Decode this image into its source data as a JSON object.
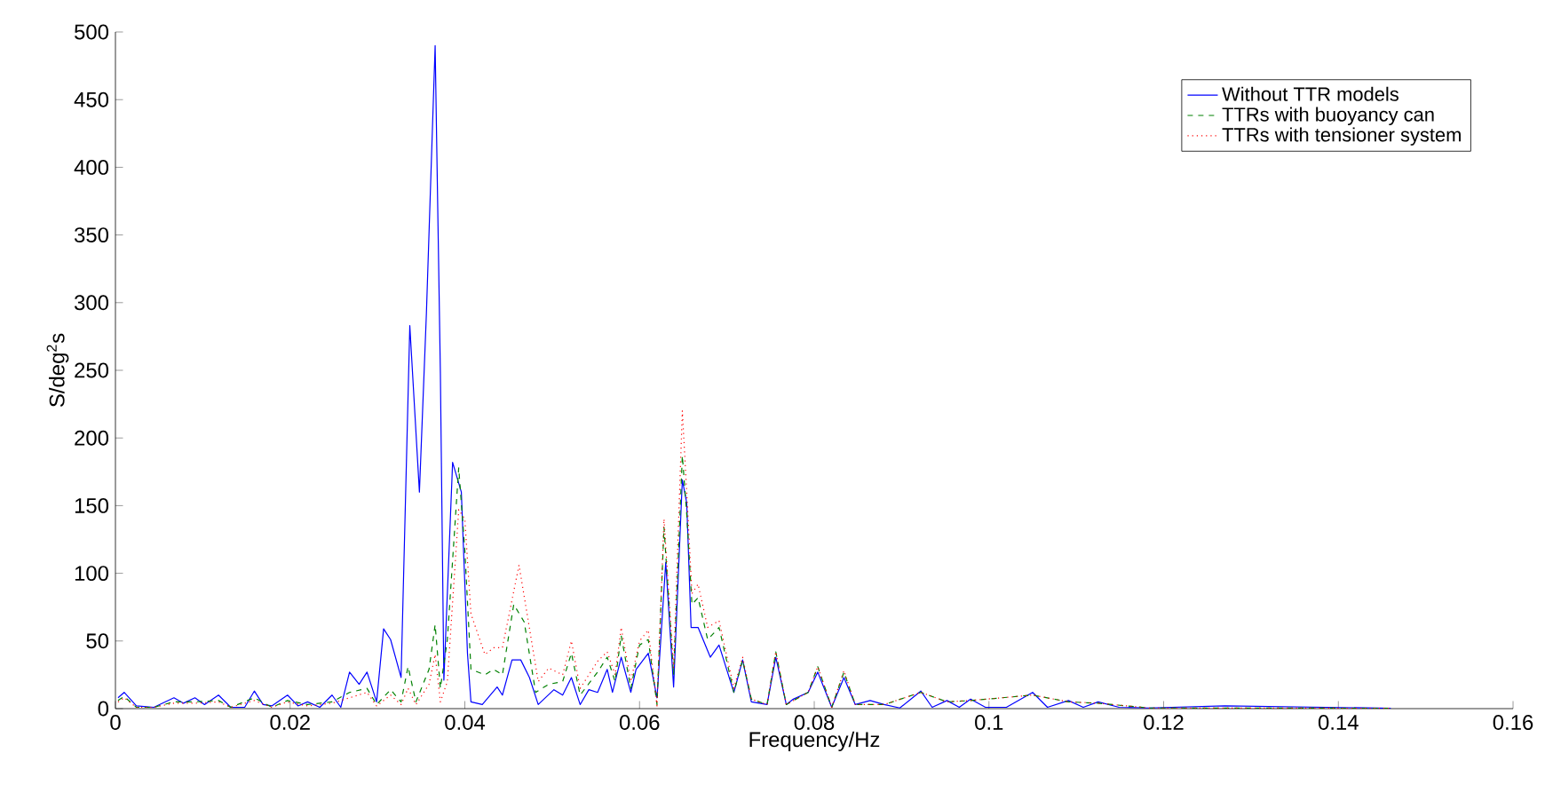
{
  "chart_data": {
    "type": "line",
    "xlabel": "Frequency/Hz",
    "ylabel": "S/deg$^{2}$s",
    "xlim": [
      0,
      0.16
    ],
    "ylim": [
      0,
      500
    ],
    "xticks": [
      0,
      0.02,
      0.04,
      0.06,
      0.08,
      0.1,
      0.12,
      0.14,
      0.16
    ],
    "yticks": [
      0,
      50,
      100,
      150,
      200,
      250,
      300,
      350,
      400,
      450,
      500
    ],
    "grid": false,
    "legend": "top right",
    "series": [
      {
        "name": "Without TTR models",
        "color": "#0000ff",
        "line_style": "solid",
        "x": [
          0.0003,
          0.001,
          0.0024,
          0.0044,
          0.0067,
          0.0078,
          0.0091,
          0.0102,
          0.0118,
          0.0132,
          0.0148,
          0.0159,
          0.0169,
          0.0179,
          0.0197,
          0.0209,
          0.022,
          0.0234,
          0.0248,
          0.0258,
          0.0268,
          0.0279,
          0.0288,
          0.0299,
          0.0307,
          0.0315,
          0.0327,
          0.0337,
          0.0348,
          0.0356,
          0.0366,
          0.0372,
          0.0376,
          0.0386,
          0.0396,
          0.0403,
          0.0407,
          0.042,
          0.0437,
          0.0443,
          0.0454,
          0.0464,
          0.0474,
          0.0484,
          0.0502,
          0.0512,
          0.0522,
          0.0532,
          0.0542,
          0.0552,
          0.0563,
          0.0569,
          0.0579,
          0.059,
          0.0596,
          0.061,
          0.062,
          0.063,
          0.0639,
          0.0649,
          0.0654,
          0.0659,
          0.0667,
          0.0681,
          0.0691,
          0.0708,
          0.0718,
          0.0728,
          0.0746,
          0.0756,
          0.0768,
          0.0776,
          0.0793,
          0.0804,
          0.082,
          0.0834,
          0.0847,
          0.0864,
          0.088,
          0.0898,
          0.0922,
          0.0935,
          0.0952,
          0.0966,
          0.0979,
          0.0996,
          0.102,
          0.105,
          0.1067,
          0.1091,
          0.1108,
          0.1125,
          0.1149,
          0.1183,
          0.127,
          0.146
        ],
        "values": [
          8,
          12,
          2,
          1,
          8,
          4,
          8,
          3,
          10,
          1,
          1,
          13,
          3,
          2,
          10,
          2,
          5,
          1,
          10,
          1,
          27,
          18,
          27,
          5,
          59,
          51,
          23,
          283,
          160,
          292,
          490,
          248,
          21,
          182,
          160,
          41,
          5,
          3,
          16,
          10,
          36,
          36,
          23,
          3,
          14,
          10,
          23,
          3,
          14,
          12,
          29,
          12,
          38,
          12,
          29,
          41,
          8,
          108,
          16,
          169,
          152,
          60,
          60,
          38,
          47,
          12,
          36,
          5,
          3,
          38,
          3,
          7,
          12,
          27,
          1,
          23,
          3,
          6,
          3,
          0.5,
          13,
          1,
          6,
          1,
          7,
          1,
          1,
          12,
          1,
          6,
          1,
          5,
          1,
          0.5,
          2,
          0.3
        ]
      },
      {
        "name": "TTRs with buoyancy can",
        "color": "#008000",
        "line_style": "dashed",
        "x": [
          0.0003,
          0.001,
          0.0024,
          0.0044,
          0.0067,
          0.0091,
          0.0118,
          0.0132,
          0.0159,
          0.0179,
          0.0197,
          0.022,
          0.0248,
          0.0268,
          0.0288,
          0.0299,
          0.0315,
          0.0327,
          0.0335,
          0.0344,
          0.0359,
          0.0366,
          0.0372,
          0.038,
          0.0393,
          0.04,
          0.0407,
          0.0423,
          0.0433,
          0.0443,
          0.0456,
          0.0468,
          0.0481,
          0.0496,
          0.0512,
          0.0522,
          0.0532,
          0.0552,
          0.0563,
          0.0572,
          0.0579,
          0.059,
          0.06,
          0.061,
          0.062,
          0.0628,
          0.0639,
          0.0649,
          0.0654,
          0.066,
          0.0667,
          0.0678,
          0.0691,
          0.0708,
          0.0718,
          0.0728,
          0.0746,
          0.0756,
          0.0768,
          0.0793,
          0.0804,
          0.082,
          0.0834,
          0.0847,
          0.088,
          0.0922,
          0.0952,
          0.0979,
          0.105,
          0.1091,
          0.1125,
          0.1183,
          0.146
        ],
        "values": [
          6,
          9,
          1,
          1,
          5,
          5,
          6,
          1,
          8,
          1,
          6,
          3,
          5,
          12,
          15,
          3,
          14,
          5,
          31,
          5,
          29,
          62,
          15,
          51,
          178,
          117,
          29,
          25,
          29,
          25,
          77,
          64,
          12,
          18,
          20,
          41,
          10,
          27,
          38,
          20,
          54,
          15,
          47,
          51,
          3,
          134,
          25,
          187,
          144,
          77,
          82,
          51,
          60,
          12,
          36,
          7,
          3,
          42,
          3,
          12,
          31,
          1,
          27,
          3,
          3,
          12,
          5,
          6,
          10,
          5,
          4,
          0.5,
          0.3
        ]
      },
      {
        "name": "TTRs with tensioner system",
        "color": "#ff0000",
        "line_style": "dotted",
        "x": [
          0.0003,
          0.001,
          0.0024,
          0.0044,
          0.0067,
          0.0091,
          0.0118,
          0.0132,
          0.0159,
          0.0179,
          0.0197,
          0.022,
          0.0248,
          0.0268,
          0.0288,
          0.0299,
          0.0315,
          0.0327,
          0.0335,
          0.0344,
          0.0359,
          0.0366,
          0.0372,
          0.038,
          0.0393,
          0.04,
          0.0407,
          0.0423,
          0.0433,
          0.0443,
          0.0462,
          0.047,
          0.0484,
          0.0496,
          0.0512,
          0.0522,
          0.0532,
          0.0552,
          0.0563,
          0.0572,
          0.0579,
          0.059,
          0.06,
          0.061,
          0.062,
          0.0628,
          0.0639,
          0.0649,
          0.0654,
          0.066,
          0.0667,
          0.0678,
          0.0691,
          0.0708,
          0.0718,
          0.0728,
          0.0746,
          0.0756,
          0.0768,
          0.0793,
          0.0804,
          0.082,
          0.0834,
          0.0847,
          0.088,
          0.0922,
          0.0952,
          0.0979,
          0.105,
          0.1091,
          0.1125,
          0.1183,
          0.146
        ],
        "values": [
          5,
          8,
          1,
          1,
          4,
          4,
          5,
          1,
          6,
          1,
          5,
          2,
          4,
          8,
          12,
          2,
          10,
          3,
          15,
          3,
          18,
          40,
          5,
          20,
          147,
          140,
          70,
          40,
          45,
          45,
          106,
          75,
          20,
          30,
          25,
          50,
          15,
          35,
          42,
          25,
          60,
          20,
          50,
          58,
          2,
          140,
          30,
          220,
          160,
          85,
          92,
          60,
          65,
          15,
          38,
          7,
          3,
          42,
          3,
          12,
          31,
          1,
          28,
          3,
          3,
          12,
          5,
          6,
          10,
          5,
          4,
          0.5,
          0.3
        ]
      }
    ]
  }
}
